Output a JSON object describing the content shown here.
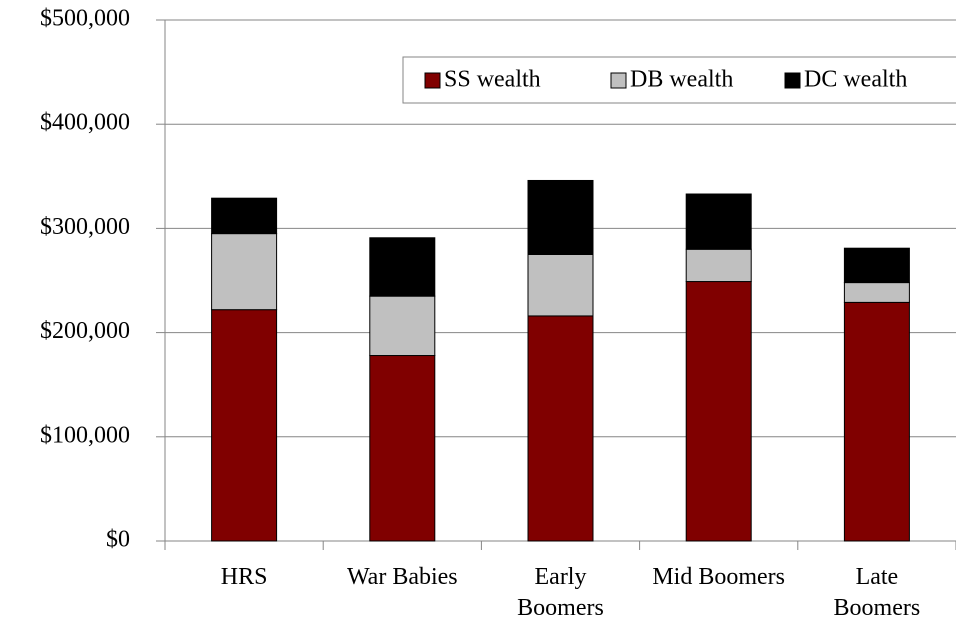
{
  "chart_data": {
    "type": "stacked_bar",
    "categories": [
      "HRS",
      "War Babies",
      "Early Boomers",
      "Mid Boomers",
      "Late Boomers"
    ],
    "series": [
      {
        "name": "SS wealth",
        "color": "#800000",
        "values": [
          222000,
          178000,
          216000,
          249000,
          229000
        ]
      },
      {
        "name": "DB wealth",
        "color": "#c0c0c0",
        "values": [
          73000,
          57000,
          59000,
          31000,
          19000
        ]
      },
      {
        "name": "DC wealth",
        "color": "#000000",
        "values": [
          34000,
          56000,
          71000,
          53000,
          33000
        ]
      }
    ],
    "ylim": [
      0,
      500000
    ],
    "yticks": [
      {
        "value": 0,
        "label": "$0"
      },
      {
        "value": 100000,
        "label": "$100,000"
      },
      {
        "value": 200000,
        "label": "$200,000"
      },
      {
        "value": 300000,
        "label": "$300,000"
      },
      {
        "value": 400000,
        "label": "$400,000"
      },
      {
        "value": 500000,
        "label": "$500,000"
      }
    ],
    "grid": true,
    "legend": "top-right"
  }
}
